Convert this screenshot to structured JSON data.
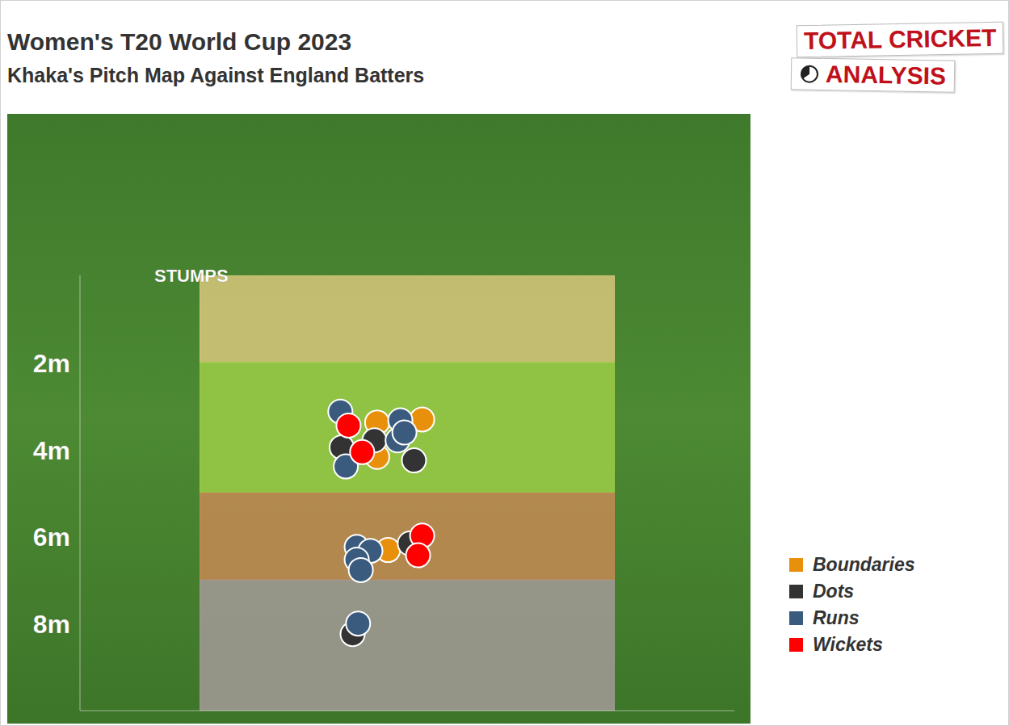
{
  "chart_data": {
    "type": "scatter",
    "title": "Women's T20 World Cup 2023",
    "subtitle": "Khaka's Pitch Map Against England Batters",
    "logo": [
      "TOTAL CRICKET",
      "ANALYSIS"
    ],
    "xlim": [
      -2.4,
      2.4
    ],
    "xticks": [],
    "ylim": [
      0,
      10
    ],
    "yticks": [
      {
        "value": 0,
        "label": "STUMPS"
      },
      {
        "value": 2,
        "label": "2m"
      },
      {
        "value": 4,
        "label": "4m"
      },
      {
        "value": 6,
        "label": "6m"
      },
      {
        "value": 8,
        "label": "8m"
      }
    ],
    "tick_labels": "y",
    "grid": false,
    "legend": "right",
    "marker": "circle",
    "pitch": {
      "x": [
        -1.52,
        1.52
      ],
      "zones": [
        {
          "from": 0,
          "to": 2,
          "color": "#d8c77c"
        },
        {
          "from": 2,
          "to": 5,
          "color": "#9ccc48"
        },
        {
          "from": 5,
          "to": 7,
          "color": "#c58a55"
        },
        {
          "from": 7,
          "to": 10,
          "color": "#a39a98"
        }
      ]
    },
    "series": [
      {
        "name": "Boundaries",
        "color": "#e8900c",
        "x": [
          -0.22,
          0.11,
          -0.22,
          -0.14
        ],
        "values": [
          3.38,
          3.31,
          4.17,
          6.31
        ]
      },
      {
        "name": "Dots",
        "color": "#333333",
        "x": [
          -0.48,
          -0.24,
          0.05,
          0.02,
          -0.4
        ],
        "values": [
          3.95,
          3.79,
          4.25,
          6.16,
          8.24
        ]
      },
      {
        "name": "Runs",
        "color": "#3a5a7e",
        "x": [
          -0.49,
          -0.05,
          -0.07,
          -0.02,
          -0.45,
          -0.37,
          -0.27,
          -0.37,
          -0.34,
          -0.36
        ],
        "values": [
          3.13,
          3.33,
          3.79,
          3.61,
          4.39,
          6.24,
          6.33,
          6.53,
          6.77,
          8.0
        ]
      },
      {
        "name": "Wickets",
        "color": "#ff0000",
        "x": [
          -0.43,
          -0.33,
          0.11,
          0.08
        ],
        "values": [
          3.45,
          4.06,
          5.98,
          6.43
        ]
      }
    ]
  }
}
